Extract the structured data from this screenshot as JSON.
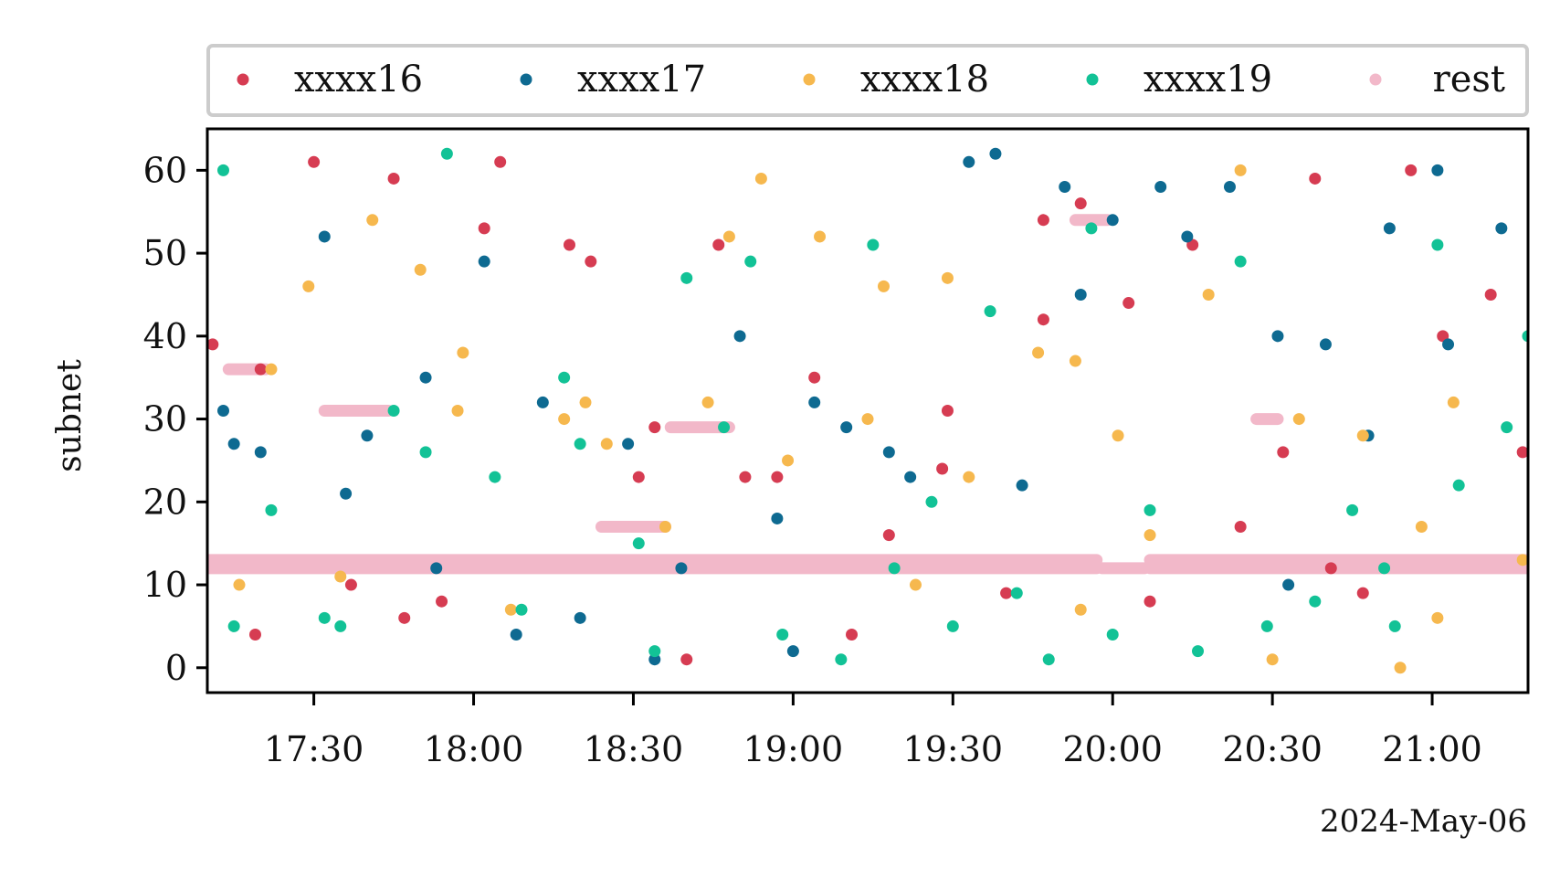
{
  "chart_data": {
    "type": "scatter",
    "title": "",
    "xlabel": "",
    "ylabel": "subnet",
    "x_offset_label": "2024-May-06",
    "x_ticks": [
      "17:30",
      "18:00",
      "18:30",
      "19:00",
      "19:30",
      "20:00",
      "20:30",
      "21:00"
    ],
    "y_ticks": [
      "0",
      "10",
      "20",
      "30",
      "40",
      "50",
      "60"
    ],
    "xlim": [
      "17:10",
      "21:18"
    ],
    "ylim": [
      -3,
      65
    ],
    "legend_position": "top (above plot, 5 columns)",
    "grid": false,
    "series": [
      {
        "name": "xxxx16",
        "color": "#d63c52",
        "points": [
          [
            "17:11",
            39
          ],
          [
            "17:19",
            4
          ],
          [
            "17:20",
            36
          ],
          [
            "17:30",
            61
          ],
          [
            "17:37",
            10
          ],
          [
            "17:45",
            59
          ],
          [
            "17:47",
            6
          ],
          [
            "17:54",
            8
          ],
          [
            "18:02",
            53
          ],
          [
            "18:05",
            61
          ],
          [
            "18:18",
            51
          ],
          [
            "18:22",
            49
          ],
          [
            "18:31",
            23
          ],
          [
            "18:34",
            29
          ],
          [
            "18:40",
            1
          ],
          [
            "18:46",
            51
          ],
          [
            "18:51",
            23
          ],
          [
            "18:57",
            23
          ],
          [
            "19:04",
            35
          ],
          [
            "19:11",
            4
          ],
          [
            "19:18",
            16
          ],
          [
            "19:28",
            24
          ],
          [
            "19:29",
            31
          ],
          [
            "19:40",
            9
          ],
          [
            "19:47",
            54
          ],
          [
            "19:47",
            42
          ],
          [
            "19:54",
            56
          ],
          [
            "20:03",
            44
          ],
          [
            "20:07",
            8
          ],
          [
            "20:15",
            51
          ],
          [
            "20:24",
            17
          ],
          [
            "20:32",
            26
          ],
          [
            "20:38",
            59
          ],
          [
            "20:41",
            12
          ],
          [
            "20:47",
            9
          ],
          [
            "20:56",
            60
          ],
          [
            "21:02",
            40
          ],
          [
            "21:11",
            45
          ],
          [
            "21:17",
            26
          ]
        ]
      },
      {
        "name": "xxxx17",
        "color": "#0e6a91",
        "points": [
          [
            "17:13",
            31
          ],
          [
            "17:15",
            27
          ],
          [
            "17:20",
            26
          ],
          [
            "17:32",
            52
          ],
          [
            "17:36",
            21
          ],
          [
            "17:40",
            28
          ],
          [
            "17:51",
            35
          ],
          [
            "17:53",
            12
          ],
          [
            "18:02",
            49
          ],
          [
            "18:08",
            4
          ],
          [
            "18:13",
            32
          ],
          [
            "18:20",
            6
          ],
          [
            "18:29",
            27
          ],
          [
            "18:34",
            1
          ],
          [
            "18:39",
            12
          ],
          [
            "18:50",
            40
          ],
          [
            "18:57",
            18
          ],
          [
            "19:00",
            2
          ],
          [
            "19:04",
            32
          ],
          [
            "19:10",
            29
          ],
          [
            "19:18",
            26
          ],
          [
            "19:22",
            23
          ],
          [
            "19:33",
            61
          ],
          [
            "19:38",
            62
          ],
          [
            "19:43",
            22
          ],
          [
            "19:51",
            58
          ],
          [
            "19:54",
            45
          ],
          [
            "20:00",
            54
          ],
          [
            "20:09",
            58
          ],
          [
            "20:14",
            52
          ],
          [
            "20:22",
            58
          ],
          [
            "20:31",
            40
          ],
          [
            "20:33",
            10
          ],
          [
            "20:40",
            39
          ],
          [
            "20:48",
            28
          ],
          [
            "20:52",
            53
          ],
          [
            "21:01",
            60
          ],
          [
            "21:03",
            39
          ],
          [
            "21:13",
            53
          ]
        ]
      },
      {
        "name": "xxxx18",
        "color": "#f6b84e",
        "points": [
          [
            "17:16",
            10
          ],
          [
            "17:22",
            36
          ],
          [
            "17:29",
            46
          ],
          [
            "17:35",
            11
          ],
          [
            "17:41",
            54
          ],
          [
            "17:50",
            48
          ],
          [
            "17:57",
            31
          ],
          [
            "17:58",
            38
          ],
          [
            "18:07",
            7
          ],
          [
            "18:17",
            30
          ],
          [
            "18:21",
            32
          ],
          [
            "18:25",
            27
          ],
          [
            "18:36",
            17
          ],
          [
            "18:44",
            32
          ],
          [
            "18:48",
            52
          ],
          [
            "18:54",
            59
          ],
          [
            "18:59",
            25
          ],
          [
            "19:05",
            52
          ],
          [
            "19:14",
            30
          ],
          [
            "19:17",
            46
          ],
          [
            "19:23",
            10
          ],
          [
            "19:29",
            47
          ],
          [
            "19:33",
            23
          ],
          [
            "19:46",
            38
          ],
          [
            "19:53",
            37
          ],
          [
            "19:54",
            7
          ],
          [
            "20:01",
            28
          ],
          [
            "20:07",
            16
          ],
          [
            "20:18",
            45
          ],
          [
            "20:24",
            60
          ],
          [
            "20:30",
            1
          ],
          [
            "20:35",
            30
          ],
          [
            "20:47",
            28
          ],
          [
            "20:54",
            0
          ],
          [
            "20:58",
            17
          ],
          [
            "21:01",
            6
          ],
          [
            "21:04",
            32
          ],
          [
            "21:17",
            13
          ]
        ]
      },
      {
        "name": "xxxx19",
        "color": "#12c296",
        "points": [
          [
            "17:13",
            60
          ],
          [
            "17:15",
            5
          ],
          [
            "17:22",
            19
          ],
          [
            "17:32",
            6
          ],
          [
            "17:35",
            5
          ],
          [
            "17:45",
            31
          ],
          [
            "17:51",
            26
          ],
          [
            "17:55",
            62
          ],
          [
            "18:04",
            23
          ],
          [
            "18:09",
            7
          ],
          [
            "18:17",
            35
          ],
          [
            "18:20",
            27
          ],
          [
            "18:31",
            15
          ],
          [
            "18:34",
            2
          ],
          [
            "18:40",
            47
          ],
          [
            "18:47",
            29
          ],
          [
            "18:52",
            49
          ],
          [
            "18:58",
            4
          ],
          [
            "19:09",
            1
          ],
          [
            "19:15",
            51
          ],
          [
            "19:19",
            12
          ],
          [
            "19:26",
            20
          ],
          [
            "19:30",
            5
          ],
          [
            "19:37",
            43
          ],
          [
            "19:42",
            9
          ],
          [
            "19:48",
            1
          ],
          [
            "19:56",
            53
          ],
          [
            "20:00",
            4
          ],
          [
            "20:07",
            19
          ],
          [
            "20:16",
            2
          ],
          [
            "20:24",
            49
          ],
          [
            "20:29",
            5
          ],
          [
            "20:38",
            8
          ],
          [
            "20:45",
            19
          ],
          [
            "20:51",
            12
          ],
          [
            "20:53",
            5
          ],
          [
            "21:01",
            51
          ],
          [
            "21:05",
            22
          ],
          [
            "21:14",
            29
          ],
          [
            "21:18",
            40
          ]
        ]
      },
      {
        "name": "rest",
        "color": "#f2b8c9",
        "bands": [
          {
            "from": "17:10",
            "to": "19:57",
            "y": 13
          },
          {
            "from": "17:10",
            "to": "19:57",
            "y": 12
          },
          {
            "from": "19:58",
            "to": "20:06",
            "y": 12
          },
          {
            "from": "20:07",
            "to": "21:18",
            "y": 13
          },
          {
            "from": "20:07",
            "to": "21:18",
            "y": 12
          },
          {
            "from": "17:14",
            "to": "17:21",
            "y": 36
          },
          {
            "from": "17:32",
            "to": "17:44",
            "y": 31
          },
          {
            "from": "18:24",
            "to": "18:36",
            "y": 17
          },
          {
            "from": "18:37",
            "to": "18:48",
            "y": 29
          },
          {
            "from": "19:53",
            "to": "19:59",
            "y": 54
          },
          {
            "from": "20:27",
            "to": "20:31",
            "y": 30
          }
        ]
      }
    ]
  }
}
